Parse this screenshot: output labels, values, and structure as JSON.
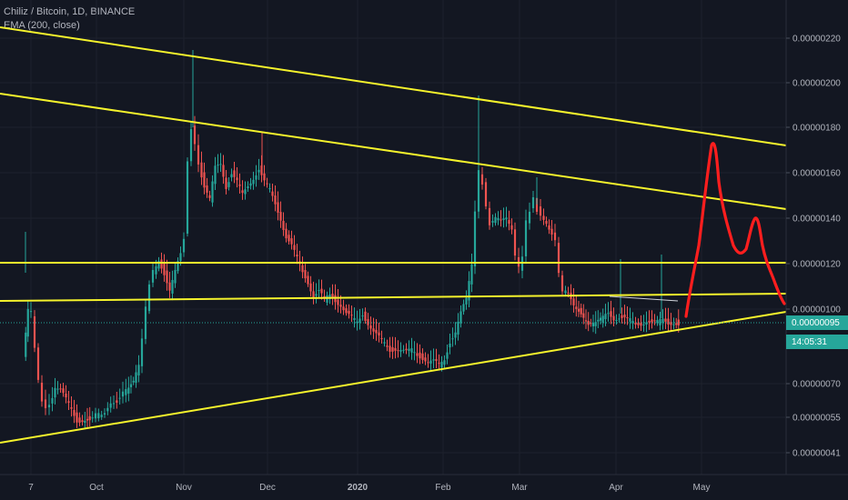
{
  "legend": {
    "symbol": "Chiliz / Bitcoin, 1D, BINANCE",
    "indicator": "EMA (200, close)"
  },
  "chart_data": {
    "type": "candlestick",
    "x_tick_labels": [
      "7",
      "Oct",
      "Nov",
      "Dec",
      "2020",
      "Feb",
      "Mar",
      "Apr",
      "May"
    ],
    "y_tick_labels": [
      "0.00000220",
      "0.00000200",
      "0.00000180",
      "0.00000160",
      "0.00000140",
      "0.00000120",
      "0.00000100",
      "0.00000070",
      "0.00000055",
      "0.00000041"
    ],
    "current_price": "0.00000095",
    "countdown": "14:05:31",
    "colors": {
      "up": "#26a69a",
      "down": "#ef5350",
      "trendline": "#f5f32c",
      "drawing": "#ff1e1e",
      "background": "#131722"
    }
  }
}
